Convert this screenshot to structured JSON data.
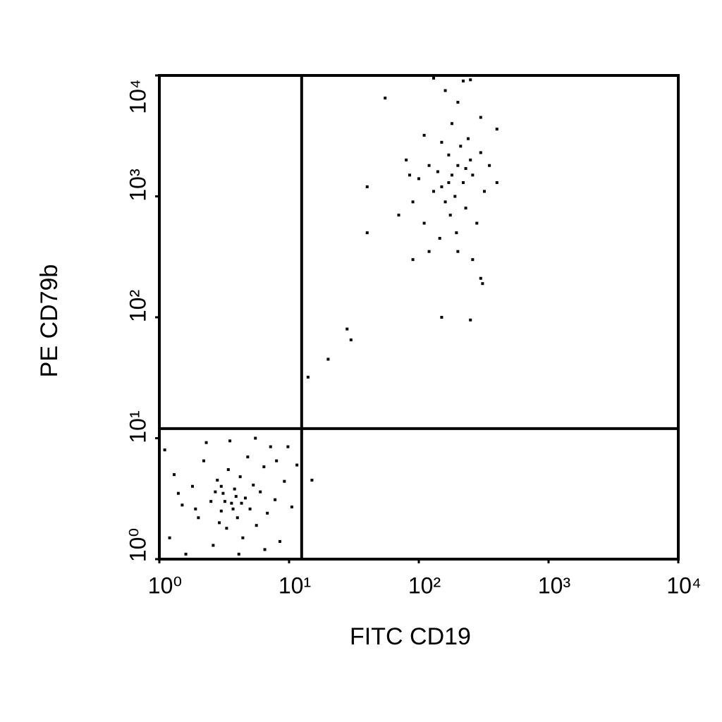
{
  "chart_data": {
    "type": "scatter",
    "x_label": "FITC CD19",
    "y_label": "PE CD79b",
    "log_x": true,
    "log_y": true,
    "color": "#000000",
    "xlim": [
      1,
      10000
    ],
    "ylim": [
      1,
      10000
    ],
    "xticks": [
      {
        "value": 1,
        "label": "10⁰"
      },
      {
        "value": 10,
        "label": "10¹"
      },
      {
        "value": 100,
        "label": "10²"
      },
      {
        "value": 1000,
        "label": "10³"
      },
      {
        "value": 10000,
        "label": "10⁴"
      }
    ],
    "yticks": [
      {
        "value": 1,
        "label": "10⁰"
      },
      {
        "value": 10,
        "label": "10¹"
      },
      {
        "value": 100,
        "label": "10²"
      },
      {
        "value": 1000,
        "label": "10³"
      },
      {
        "value": 10000,
        "label": "10⁴"
      }
    ],
    "quadrant_gates": {
      "x": 12.5,
      "y": 12
    },
    "x": [
      1.2,
      1.5,
      1.8,
      2.0,
      2.2,
      2.5,
      2.6,
      2.8,
      3.0,
      3.1,
      3.3,
      3.4,
      3.6,
      3.8,
      4.0,
      4.2,
      4.4,
      4.6,
      4.8,
      5.0,
      5.3,
      5.6,
      6.0,
      6.4,
      6.8,
      7.2,
      7.8,
      8.5,
      9.2,
      10.5,
      11.5,
      1.1,
      1.3,
      1.6,
      2.3,
      3.5,
      5.5,
      4.1,
      2.9,
      3.2,
      3.7,
      3.9,
      4.3,
      2.7,
      3.0,
      1.9,
      6.5,
      9.8,
      1.4,
      8.0,
      150,
      180,
      200,
      170,
      220,
      160,
      140,
      190,
      250,
      210,
      130,
      120,
      175,
      230,
      260,
      300,
      100,
      90,
      110,
      280,
      195,
      145,
      85,
      350,
      320,
      240,
      180,
      200,
      160,
      220,
      130,
      250,
      110,
      300,
      400,
      80,
      70,
      90,
      120,
      200,
      260,
      400,
      150,
      170,
      230,
      40,
      40,
      55,
      28,
      30,
      20,
      14,
      15,
      150,
      250,
      300,
      310
    ],
    "y": [
      1.5,
      2.8,
      4.0,
      2.2,
      6.5,
      3.0,
      1.3,
      4.5,
      2.5,
      3.5,
      1.8,
      5.5,
      2.9,
      3.8,
      2.2,
      4.8,
      1.5,
      3.2,
      7.0,
      2.6,
      4.1,
      1.9,
      3.6,
      5.8,
      2.4,
      8.5,
      3.1,
      1.4,
      4.4,
      2.7,
      6.0,
      8.0,
      5.0,
      1.1,
      9.2,
      9.5,
      10,
      1.1,
      2.0,
      3.0,
      2.6,
      3.3,
      2.9,
      3.6,
      4.0,
      2.6,
      1.2,
      8.5,
      3.5,
      6.5,
      1200,
      1500,
      1800,
      2200,
      1300,
      900,
      1600,
      1000,
      2000,
      2600,
      1100,
      1800,
      700,
      800,
      1500,
      2300,
      1400,
      900,
      600,
      600,
      500,
      450,
      1500,
      1800,
      1100,
      3000,
      4000,
      6000,
      7500,
      9000,
      9500,
      9200,
      3200,
      4500,
      3600,
      2000,
      700,
      300,
      350,
      350,
      300,
      1300,
      2800,
      1300,
      1700,
      1200,
      500,
      6500,
      80,
      65,
      45,
      32,
      4.5,
      100,
      95,
      210,
      190
    ]
  }
}
